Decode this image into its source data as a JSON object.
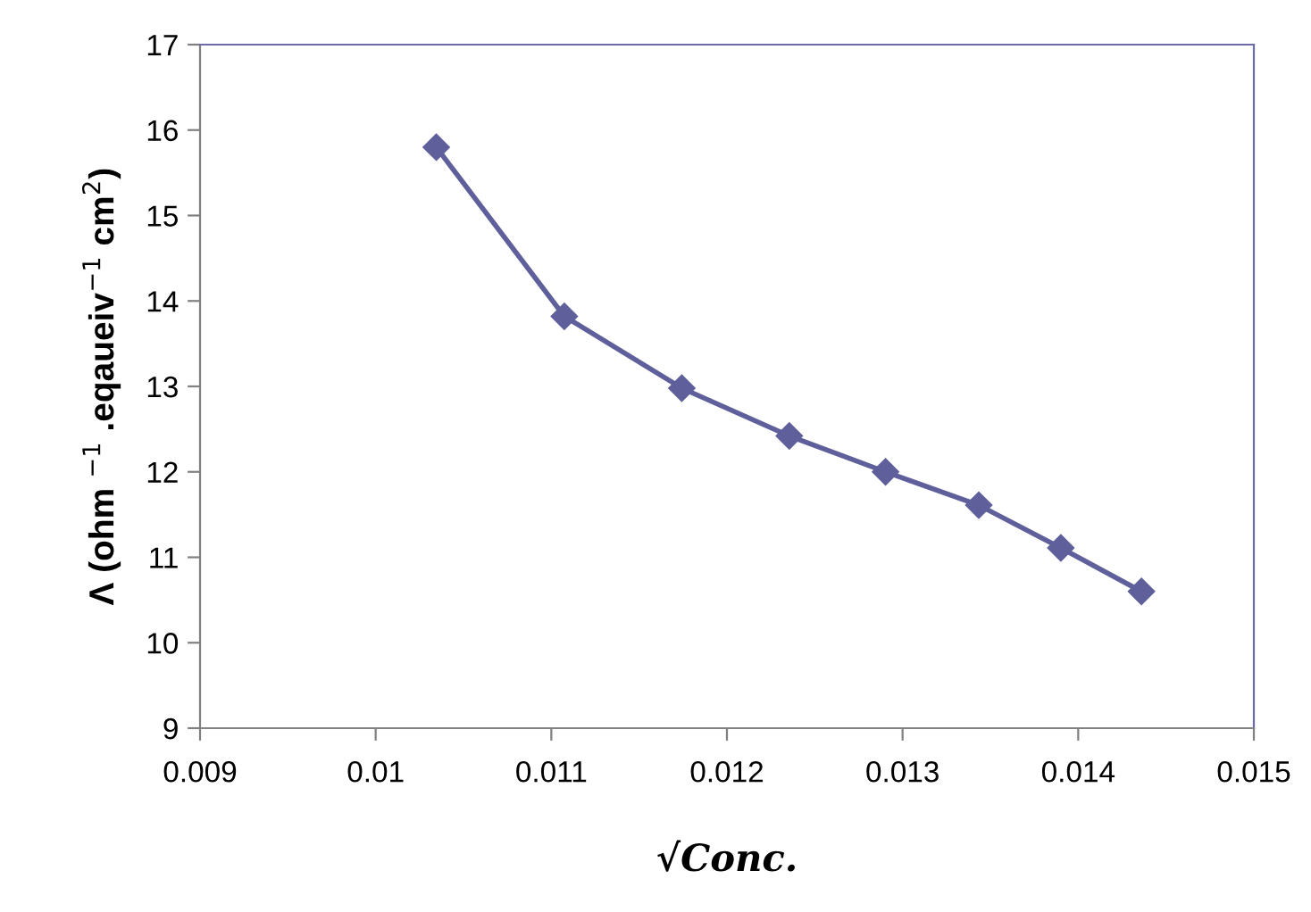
{
  "chart_data": {
    "type": "line",
    "xlabel": "√Conc.",
    "ylabel": "Λ (ohm $^{−1}$ .eqaueiv$^{−1}$ cm$^{2}$)",
    "x": [
      0.010345,
      0.011074,
      0.011743,
      0.012355,
      0.012903,
      0.013434,
      0.013901,
      0.01436
    ],
    "series": [
      {
        "color": "#5f5f9b",
        "values": [
          15.8,
          13.82,
          12.98,
          12.42,
          12.0,
          11.61,
          11.11,
          10.6
        ]
      }
    ],
    "xlim": [
      0.009,
      0.015
    ],
    "xticks": [
      0.009,
      0.01,
      0.011,
      0.012,
      0.013,
      0.014,
      0.015
    ],
    "ylim": [
      9,
      17
    ],
    "yticks": [
      9,
      10,
      11,
      12,
      13,
      14,
      15,
      16,
      17
    ],
    "marker": "diamond",
    "line_style": "solid",
    "grid": false,
    "legend": false
  }
}
